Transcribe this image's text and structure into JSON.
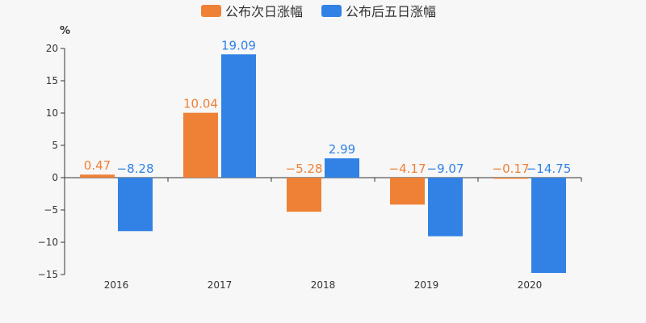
{
  "chart_data": {
    "type": "bar",
    "categories": [
      "2016",
      "2017",
      "2018",
      "2019",
      "2020"
    ],
    "series": [
      {
        "name": "公布次日涨幅",
        "values": [
          0.47,
          10.04,
          -5.28,
          -4.17,
          -0.17
        ],
        "labels": [
          "0.47",
          "10.04",
          "−5.28",
          "−4.17",
          "−0.17"
        ],
        "color": "#ee8135"
      },
      {
        "name": "公布后五日涨幅",
        "values": [
          -8.28,
          19.09,
          2.99,
          -9.07,
          -14.75
        ],
        "labels": [
          "−8.28",
          "19.09",
          "2.99",
          "−9.07",
          "−14.75"
        ],
        "color": "#3282e6"
      }
    ],
    "ylabel": "%",
    "ylim": [
      -15,
      20
    ],
    "yticks": [
      20,
      15,
      10,
      5,
      0,
      -5,
      -10,
      -15
    ],
    "ytick_labels": [
      "20",
      "15",
      "10",
      "5",
      "0",
      "−5",
      "−10",
      "−15"
    ],
    "legend_position": "top-center",
    "grid": false
  }
}
